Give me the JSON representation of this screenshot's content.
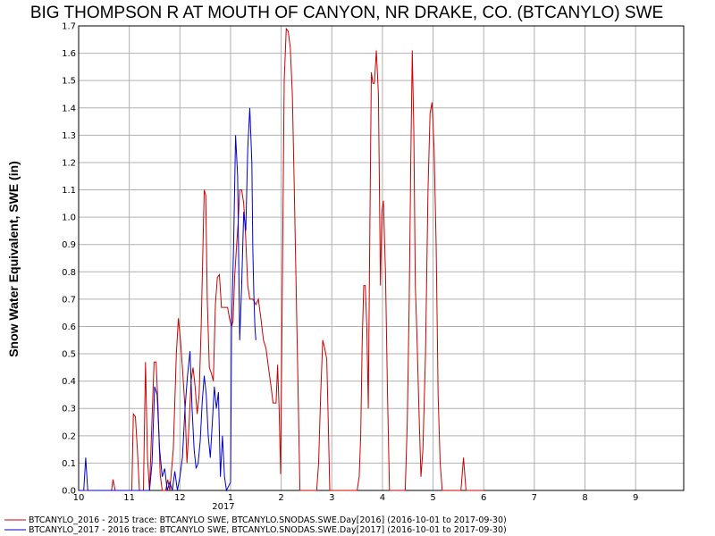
{
  "chart_data": {
    "type": "line",
    "title": "BIG THOMPSON R AT MOUTH OF CANYON, NR DRAKE, CO. (BTCANYLO) SWE",
    "ylabel": "Snow Water Equivalent, SWE (in)",
    "xlabel": "",
    "ylim": [
      0,
      1.7
    ],
    "xlim": [
      10,
      10.95
    ],
    "y_ticks": [
      "0.0",
      "0.1",
      "0.2",
      "0.3",
      "0.4",
      "0.5",
      "0.6",
      "0.7",
      "0.8",
      "0.9",
      "1.0",
      "1.1",
      "1.2",
      "1.3",
      "1.4",
      "1.5",
      "1.6",
      "1.7"
    ],
    "x_ticks": [
      {
        "x": 10,
        "label": "10"
      },
      {
        "x": 11,
        "label": "11"
      },
      {
        "x": 12,
        "label": "12"
      },
      {
        "x": 13,
        "label": "1"
      },
      {
        "x": 14,
        "label": "2"
      },
      {
        "x": 15,
        "label": "3"
      },
      {
        "x": 16,
        "label": "4"
      },
      {
        "x": 17,
        "label": "5"
      },
      {
        "x": 18,
        "label": "6"
      },
      {
        "x": 19,
        "label": "7"
      },
      {
        "x": 20,
        "label": "8"
      },
      {
        "x": 21,
        "label": "9"
      }
    ],
    "year_label": {
      "x": 13,
      "label": "2017"
    },
    "grid": true,
    "legend_position": "bottom-left",
    "series": [
      {
        "name": "BTCANYLO_2016 - 2015 trace: BTCANYLO SWE, BTCANYLO.SNODAS.SWE.Day[2016] (2016-10-01 to 2017-09-30)",
        "color": "#cc0000",
        "points": [
          [
            10.0,
            0
          ],
          [
            10.65,
            0
          ],
          [
            10.68,
            0.04
          ],
          [
            10.72,
            0
          ],
          [
            11.05,
            0
          ],
          [
            11.08,
            0.28
          ],
          [
            11.12,
            0.27
          ],
          [
            11.16,
            0.15
          ],
          [
            11.2,
            0
          ],
          [
            11.28,
            0
          ],
          [
            11.32,
            0.47
          ],
          [
            11.36,
            0.12
          ],
          [
            11.4,
            0
          ],
          [
            11.45,
            0.26
          ],
          [
            11.49,
            0.47
          ],
          [
            11.53,
            0.47
          ],
          [
            11.57,
            0.3
          ],
          [
            11.61,
            0.06
          ],
          [
            11.65,
            0
          ],
          [
            11.72,
            0
          ],
          [
            11.76,
            0.04
          ],
          [
            11.8,
            0
          ],
          [
            11.87,
            0.15
          ],
          [
            11.93,
            0.5
          ],
          [
            11.97,
            0.63
          ],
          [
            12.01,
            0.55
          ],
          [
            12.05,
            0.45
          ],
          [
            12.1,
            0.3
          ],
          [
            12.14,
            0.1
          ],
          [
            12.18,
            0.24
          ],
          [
            12.22,
            0.4
          ],
          [
            12.26,
            0.45
          ],
          [
            12.3,
            0.38
          ],
          [
            12.34,
            0.28
          ],
          [
            12.38,
            0.35
          ],
          [
            12.42,
            0.6
          ],
          [
            12.45,
            0.85
          ],
          [
            12.48,
            1.1
          ],
          [
            12.51,
            1.08
          ],
          [
            12.54,
            0.7
          ],
          [
            12.58,
            0.45
          ],
          [
            12.62,
            0.43
          ],
          [
            12.66,
            0.4
          ],
          [
            12.7,
            0.68
          ],
          [
            12.74,
            0.78
          ],
          [
            12.78,
            0.79
          ],
          [
            12.82,
            0.67
          ],
          [
            12.88,
            0.67
          ],
          [
            12.94,
            0.67
          ],
          [
            12.98,
            0.63
          ],
          [
            13.02,
            0.6
          ],
          [
            13.05,
            0.62
          ],
          [
            13.08,
            0.78
          ],
          [
            13.12,
            0.9
          ],
          [
            13.15,
            0.98
          ],
          [
            13.18,
            1.1
          ],
          [
            13.22,
            1.1
          ],
          [
            13.26,
            1.05
          ],
          [
            13.3,
            0.92
          ],
          [
            13.34,
            0.75
          ],
          [
            13.38,
            0.7
          ],
          [
            13.44,
            0.7
          ],
          [
            13.5,
            0.68
          ],
          [
            13.55,
            0.7
          ],
          [
            13.6,
            0.63
          ],
          [
            13.65,
            0.55
          ],
          [
            13.7,
            0.52
          ],
          [
            13.75,
            0.45
          ],
          [
            13.8,
            0.38
          ],
          [
            13.84,
            0.32
          ],
          [
            13.9,
            0.32
          ],
          [
            13.93,
            0.46
          ],
          [
            13.96,
            0.3
          ],
          [
            13.99,
            0.06
          ],
          [
            14.03,
            0.9
          ],
          [
            14.06,
            1.5
          ],
          [
            14.1,
            1.69
          ],
          [
            14.14,
            1.68
          ],
          [
            14.18,
            1.62
          ],
          [
            14.22,
            1.45
          ],
          [
            14.26,
            1.1
          ],
          [
            14.3,
            0.7
          ],
          [
            14.34,
            0.3
          ],
          [
            14.37,
            0
          ],
          [
            14.7,
            0
          ],
          [
            14.74,
            0.1
          ],
          [
            14.78,
            0.35
          ],
          [
            14.82,
            0.55
          ],
          [
            14.86,
            0.52
          ],
          [
            14.9,
            0.48
          ],
          [
            14.93,
            0.25
          ],
          [
            14.96,
            0
          ],
          [
            15.5,
            0
          ],
          [
            15.54,
            0.05
          ],
          [
            15.57,
            0.2
          ],
          [
            15.6,
            0.55
          ],
          [
            15.63,
            0.75
          ],
          [
            15.66,
            0.75
          ],
          [
            15.69,
            0.6
          ],
          [
            15.72,
            0.3
          ],
          [
            15.75,
            0.95
          ],
          [
            15.78,
            1.53
          ],
          [
            15.81,
            1.49
          ],
          [
            15.84,
            1.49
          ],
          [
            15.88,
            1.61
          ],
          [
            15.92,
            1.45
          ],
          [
            15.96,
            0.75
          ],
          [
            15.99,
            1.02
          ],
          [
            16.02,
            1.06
          ],
          [
            16.06,
            0.8
          ],
          [
            16.1,
            0.35
          ],
          [
            16.14,
            0
          ],
          [
            16.45,
            0
          ],
          [
            16.49,
            0.25
          ],
          [
            16.53,
            0.7
          ],
          [
            16.56,
            1.2
          ],
          [
            16.59,
            1.61
          ],
          [
            16.62,
            1.32
          ],
          [
            16.65,
            0.75
          ],
          [
            16.68,
            0.58
          ],
          [
            16.72,
            0.3
          ],
          [
            16.76,
            0.05
          ],
          [
            16.8,
            0.15
          ],
          [
            16.85,
            0.5
          ],
          [
            16.9,
            1.1
          ],
          [
            16.94,
            1.38
          ],
          [
            16.98,
            1.42
          ],
          [
            17.02,
            1.25
          ],
          [
            17.06,
            0.9
          ],
          [
            17.1,
            0.35
          ],
          [
            17.14,
            0.1
          ],
          [
            17.18,
            0
          ],
          [
            17.55,
            0
          ],
          [
            17.6,
            0.12
          ],
          [
            17.65,
            0
          ],
          [
            18.0,
            0
          ]
        ]
      },
      {
        "name": "BTCANYLO_2017 - 2016 trace: BTCANYLO SWE, BTCANYLO.SNODAS.SWE.Day[2017] (2016-10-01 to 2017-09-30)",
        "color": "#0000cc",
        "points": [
          [
            10.0,
            0
          ],
          [
            10.1,
            0
          ],
          [
            10.14,
            0.12
          ],
          [
            10.18,
            0
          ],
          [
            11.4,
            0
          ],
          [
            11.45,
            0.1
          ],
          [
            11.5,
            0.38
          ],
          [
            11.55,
            0.35
          ],
          [
            11.6,
            0.15
          ],
          [
            11.65,
            0.05
          ],
          [
            11.7,
            0.08
          ],
          [
            11.75,
            0
          ],
          [
            11.8,
            0.03
          ],
          [
            11.85,
            0
          ],
          [
            11.9,
            0.07
          ],
          [
            11.95,
            0
          ],
          [
            12.0,
            0.05
          ],
          [
            12.05,
            0.12
          ],
          [
            12.1,
            0.3
          ],
          [
            12.15,
            0.42
          ],
          [
            12.2,
            0.51
          ],
          [
            12.24,
            0.3
          ],
          [
            12.28,
            0.15
          ],
          [
            12.32,
            0.08
          ],
          [
            12.36,
            0.1
          ],
          [
            12.4,
            0.18
          ],
          [
            12.44,
            0.32
          ],
          [
            12.48,
            0.42
          ],
          [
            12.52,
            0.35
          ],
          [
            12.56,
            0.2
          ],
          [
            12.6,
            0.12
          ],
          [
            12.64,
            0.25
          ],
          [
            12.68,
            0.38
          ],
          [
            12.72,
            0.3
          ],
          [
            12.76,
            0.36
          ],
          [
            12.8,
            0.05
          ],
          [
            12.84,
            0.2
          ],
          [
            12.88,
            0.05
          ],
          [
            12.92,
            0
          ],
          [
            13.0,
            0.03
          ],
          [
            13.02,
            0.6
          ],
          [
            13.06,
            0.9
          ],
          [
            13.1,
            1.3
          ],
          [
            13.14,
            1.15
          ],
          [
            13.18,
            0.55
          ],
          [
            13.22,
            0.75
          ],
          [
            13.26,
            1.02
          ],
          [
            13.3,
            0.95
          ],
          [
            13.34,
            1.25
          ],
          [
            13.38,
            1.4
          ],
          [
            13.42,
            1.2
          ],
          [
            13.44,
            0.88
          ],
          [
            13.46,
            0.72
          ],
          [
            13.48,
            0.6
          ],
          [
            13.5,
            0.55
          ]
        ]
      }
    ]
  }
}
